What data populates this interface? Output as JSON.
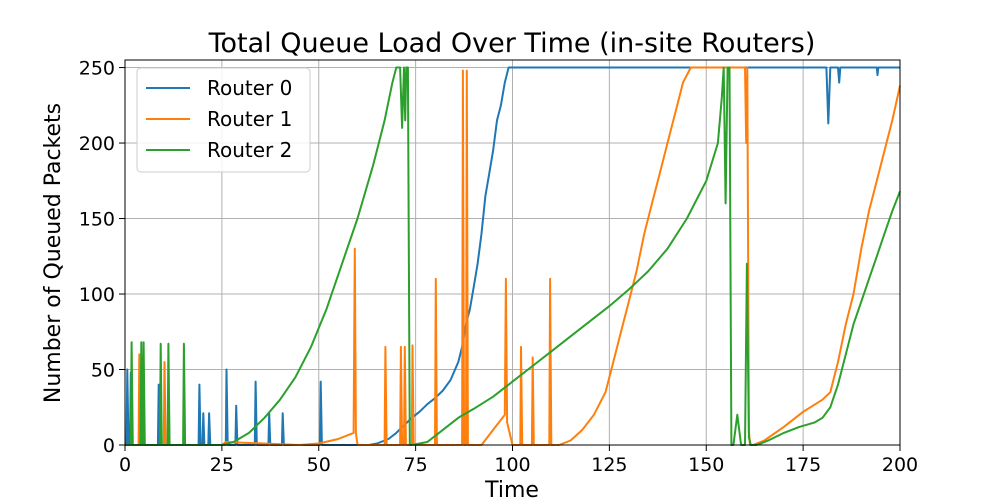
{
  "chart_data": {
    "type": "line",
    "title": "Total Queue Load Over Time (in-site Routers)",
    "xlabel": "Time",
    "ylabel": "Number of Queued Packets",
    "xlim": [
      0,
      200
    ],
    "ylim": [
      0,
      255
    ],
    "xticks": [
      0,
      25,
      50,
      75,
      100,
      125,
      150,
      175,
      200
    ],
    "yticks": [
      0,
      50,
      100,
      150,
      200,
      250
    ],
    "grid": true,
    "legend": "top-left",
    "series": [
      {
        "name": "Router 0",
        "color": "#1f77b4",
        "points": [
          [
            0,
            0
          ],
          [
            0.4,
            0
          ],
          [
            0.6,
            50
          ],
          [
            0.9,
            0
          ],
          [
            1.3,
            0
          ],
          [
            1.5,
            48
          ],
          [
            1.8,
            0
          ],
          [
            8.5,
            0
          ],
          [
            8.7,
            40
          ],
          [
            9.0,
            0
          ],
          [
            19,
            0
          ],
          [
            19.2,
            40
          ],
          [
            19.5,
            0
          ],
          [
            20,
            0
          ],
          [
            20.2,
            21
          ],
          [
            20.5,
            0
          ],
          [
            21.5,
            0
          ],
          [
            21.7,
            21
          ],
          [
            22,
            0
          ],
          [
            26,
            0
          ],
          [
            26.2,
            50
          ],
          [
            26.5,
            0
          ],
          [
            28.5,
            0
          ],
          [
            28.7,
            26
          ],
          [
            29,
            0
          ],
          [
            33.5,
            0
          ],
          [
            33.7,
            42
          ],
          [
            34,
            0
          ],
          [
            37,
            0
          ],
          [
            37.2,
            21
          ],
          [
            37.5,
            0
          ],
          [
            40.5,
            0
          ],
          [
            40.7,
            21
          ],
          [
            41,
            0
          ],
          [
            50.3,
            0
          ],
          [
            50.5,
            42
          ],
          [
            50.8,
            0
          ],
          [
            63,
            0
          ],
          [
            65,
            1
          ],
          [
            67,
            3
          ],
          [
            68,
            4
          ],
          [
            70,
            8
          ],
          [
            72,
            13
          ],
          [
            74,
            18
          ],
          [
            76,
            22
          ],
          [
            78,
            27
          ],
          [
            80,
            31
          ],
          [
            82,
            36
          ],
          [
            84,
            43
          ],
          [
            86,
            55
          ],
          [
            87,
            65
          ],
          [
            88,
            80
          ],
          [
            89,
            90
          ],
          [
            90,
            105
          ],
          [
            91,
            120
          ],
          [
            92,
            140
          ],
          [
            93,
            165
          ],
          [
            94,
            180
          ],
          [
            95,
            195
          ],
          [
            96,
            215
          ],
          [
            97,
            225
          ],
          [
            98,
            240
          ],
          [
            99,
            250
          ],
          [
            181,
            250
          ],
          [
            181.5,
            213
          ],
          [
            182,
            250
          ],
          [
            184,
            250
          ],
          [
            184.3,
            240
          ],
          [
            184.6,
            250
          ],
          [
            194,
            250
          ],
          [
            194.2,
            245
          ],
          [
            194.4,
            250
          ],
          [
            200,
            250
          ]
        ]
      },
      {
        "name": "Router 1",
        "color": "#ff7f0e",
        "points": [
          [
            0,
            0
          ],
          [
            3.5,
            0
          ],
          [
            3.7,
            60
          ],
          [
            4.0,
            0
          ],
          [
            10,
            0
          ],
          [
            10.2,
            55
          ],
          [
            10.5,
            0
          ],
          [
            25,
            0
          ],
          [
            26,
            2
          ],
          [
            45,
            0
          ],
          [
            50,
            1
          ],
          [
            55,
            4
          ],
          [
            59,
            8
          ],
          [
            59.3,
            130
          ],
          [
            59.6,
            8
          ],
          [
            60,
            0
          ],
          [
            67,
            0
          ],
          [
            67.2,
            65
          ],
          [
            67.5,
            0
          ],
          [
            71,
            0
          ],
          [
            71.2,
            65
          ],
          [
            71.5,
            0
          ],
          [
            72,
            0
          ],
          [
            72.2,
            65
          ],
          [
            72.5,
            0
          ],
          [
            74,
            0
          ],
          [
            74.2,
            66
          ],
          [
            74.5,
            0
          ],
          [
            80,
            0
          ],
          [
            80.2,
            110
          ],
          [
            80.5,
            0
          ],
          [
            87,
            0
          ],
          [
            87.2,
            248
          ],
          [
            87.5,
            0
          ],
          [
            88,
            0
          ],
          [
            88.2,
            248
          ],
          [
            88.5,
            0
          ],
          [
            92,
            0
          ],
          [
            95,
            10
          ],
          [
            98,
            20
          ],
          [
            98.3,
            110
          ],
          [
            98.6,
            15
          ],
          [
            100,
            0
          ],
          [
            102,
            0
          ],
          [
            102.2,
            65
          ],
          [
            102.5,
            0
          ],
          [
            105,
            0
          ],
          [
            105.2,
            58
          ],
          [
            105.5,
            0
          ],
          [
            109.5,
            0
          ],
          [
            109.7,
            110
          ],
          [
            110,
            0
          ],
          [
            112,
            0
          ],
          [
            115,
            3
          ],
          [
            118,
            10
          ],
          [
            121,
            20
          ],
          [
            124,
            35
          ],
          [
            126,
            55
          ],
          [
            128,
            75
          ],
          [
            130,
            95
          ],
          [
            132,
            115
          ],
          [
            134,
            140
          ],
          [
            136,
            160
          ],
          [
            138,
            180
          ],
          [
            140,
            200
          ],
          [
            142,
            220
          ],
          [
            144,
            240
          ],
          [
            146,
            250
          ],
          [
            160,
            250
          ],
          [
            160.3,
            200
          ],
          [
            160.6,
            250
          ],
          [
            161,
            10
          ],
          [
            161.3,
            0
          ],
          [
            162,
            0
          ],
          [
            165,
            3
          ],
          [
            170,
            12
          ],
          [
            175,
            22
          ],
          [
            180,
            30
          ],
          [
            182,
            35
          ],
          [
            184,
            55
          ],
          [
            186,
            80
          ],
          [
            188,
            100
          ],
          [
            190,
            130
          ],
          [
            192,
            155
          ],
          [
            194,
            175
          ],
          [
            196,
            195
          ],
          [
            198,
            215
          ],
          [
            200,
            238
          ]
        ]
      },
      {
        "name": "Router 2",
        "color": "#2ca02c",
        "points": [
          [
            0,
            0
          ],
          [
            1.5,
            0
          ],
          [
            1.7,
            68
          ],
          [
            2,
            0
          ],
          [
            4,
            0
          ],
          [
            4.2,
            68
          ],
          [
            4.5,
            0
          ],
          [
            4.6,
            0
          ],
          [
            4.8,
            68
          ],
          [
            5.1,
            0
          ],
          [
            9,
            0
          ],
          [
            9.2,
            67
          ],
          [
            9.5,
            0
          ],
          [
            11,
            0
          ],
          [
            11.2,
            67
          ],
          [
            11.5,
            0
          ],
          [
            15,
            0
          ],
          [
            15.2,
            67
          ],
          [
            15.5,
            0
          ],
          [
            25,
            0
          ],
          [
            28,
            2
          ],
          [
            32,
            8
          ],
          [
            36,
            18
          ],
          [
            40,
            30
          ],
          [
            44,
            45
          ],
          [
            48,
            65
          ],
          [
            52,
            90
          ],
          [
            56,
            120
          ],
          [
            60,
            150
          ],
          [
            64,
            185
          ],
          [
            67,
            215
          ],
          [
            69,
            240
          ],
          [
            70,
            250
          ],
          [
            71,
            250
          ],
          [
            71.5,
            210
          ],
          [
            72,
            250
          ],
          [
            72.3,
            215
          ],
          [
            72.6,
            250
          ],
          [
            73,
            250
          ],
          [
            73.5,
            0
          ],
          [
            74,
            0
          ],
          [
            78,
            2
          ],
          [
            82,
            10
          ],
          [
            86,
            18
          ],
          [
            90,
            24
          ],
          [
            95,
            32
          ],
          [
            100,
            42
          ],
          [
            105,
            52
          ],
          [
            110,
            62
          ],
          [
            115,
            72
          ],
          [
            120,
            82
          ],
          [
            125,
            92
          ],
          [
            130,
            103
          ],
          [
            135,
            115
          ],
          [
            140,
            130
          ],
          [
            145,
            150
          ],
          [
            150,
            175
          ],
          [
            153,
            200
          ],
          [
            154,
            230
          ],
          [
            154.5,
            250
          ],
          [
            155,
            160
          ],
          [
            155.5,
            250
          ],
          [
            156,
            250
          ],
          [
            156.5,
            0
          ],
          [
            157,
            0
          ],
          [
            158,
            20
          ],
          [
            159,
            0
          ],
          [
            160,
            0
          ],
          [
            160.5,
            120
          ],
          [
            161,
            5
          ],
          [
            161.5,
            0
          ],
          [
            163,
            0
          ],
          [
            166,
            3
          ],
          [
            170,
            8
          ],
          [
            174,
            12
          ],
          [
            178,
            15
          ],
          [
            180,
            18
          ],
          [
            182,
            25
          ],
          [
            184,
            40
          ],
          [
            186,
            60
          ],
          [
            188,
            80
          ],
          [
            190,
            95
          ],
          [
            192,
            110
          ],
          [
            194,
            125
          ],
          [
            196,
            140
          ],
          [
            198,
            155
          ],
          [
            200,
            168
          ]
        ]
      }
    ]
  }
}
